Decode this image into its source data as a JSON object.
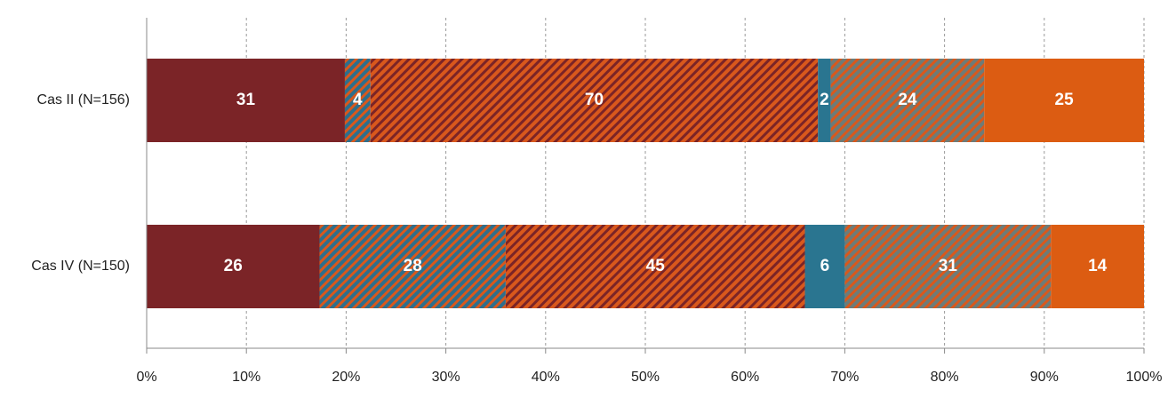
{
  "chart_data": {
    "type": "bar",
    "orientation": "horizontal",
    "stacking": "percent",
    "categories": [
      "Cas II (N=156)",
      "Cas IV (N=150)"
    ],
    "series": [
      {
        "color": "#7b2427",
        "values": [
          31,
          26
        ]
      },
      {
        "color": "#2e6f8c",
        "hatch": "#d9581c",
        "values": [
          4,
          28
        ]
      },
      {
        "color": "#d9581c",
        "hatch": "#7b2427",
        "values": [
          70,
          45
        ]
      },
      {
        "color": "#2a7590",
        "values": [
          2,
          6
        ]
      },
      {
        "color": "#6d7c78",
        "hatch": "#d9581c",
        "values": [
          24,
          31
        ]
      },
      {
        "color": "#dc5c12",
        "values": [
          25,
          14
        ]
      }
    ],
    "xlim": [
      0,
      100
    ],
    "xticks": [
      {
        "value": 0,
        "label": "0%"
      },
      {
        "value": 10,
        "label": "10%"
      },
      {
        "value": 20,
        "label": "20%"
      },
      {
        "value": 30,
        "label": "30%"
      },
      {
        "value": 40,
        "label": "40%"
      },
      {
        "value": 50,
        "label": "50%"
      },
      {
        "value": 60,
        "label": "60%"
      },
      {
        "value": 70,
        "label": "70%"
      },
      {
        "value": 80,
        "label": "80%"
      },
      {
        "value": 90,
        "label": "90%"
      },
      {
        "value": 100,
        "label": "100%"
      }
    ],
    "grid": true
  }
}
